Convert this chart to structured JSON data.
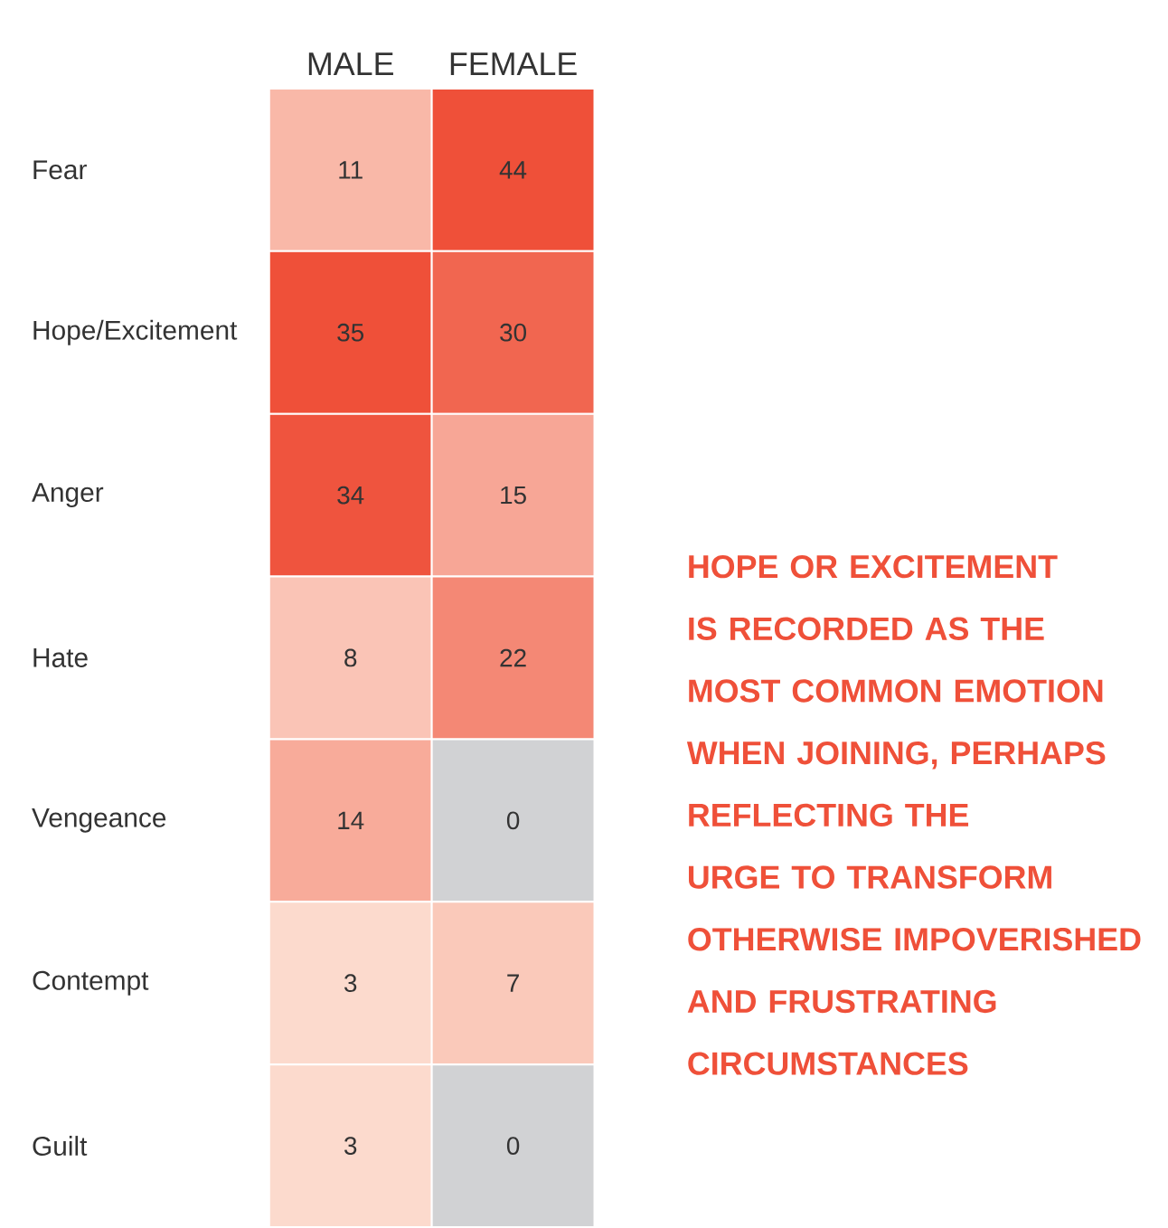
{
  "chart_data": {
    "type": "heatmap",
    "categories": [
      "MALE",
      "FEMALE"
    ],
    "y_categories": [
      "Fear",
      "Hope/Excitement",
      "Anger",
      "Hate",
      "Vengeance",
      "Contempt",
      "Guilt"
    ],
    "data_labels": true,
    "cells": [
      [
        11,
        44
      ],
      [
        35,
        30
      ],
      [
        34,
        15
      ],
      [
        8,
        22
      ],
      [
        14,
        0
      ],
      [
        3,
        7
      ],
      [
        3,
        0
      ]
    ],
    "annotations": [
      "HOPE OR EXCITEMENT IS RECORDED AS THE MOST COMMON EMOTION WHEN JOINING, PERHAPS REFLECTING THE URGE TO TRANSFORM OTHERWISE IMPOVERISHED AND FRUSTRATING CIRCUMSTANCES"
    ]
  }
}
